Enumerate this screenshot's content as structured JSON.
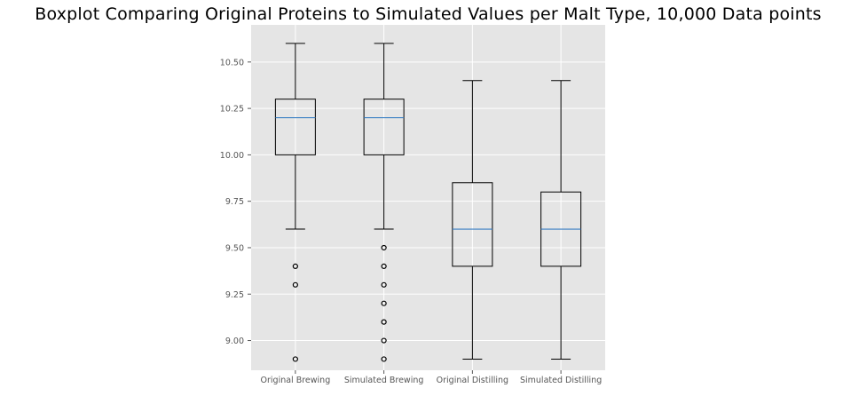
{
  "chart_data": {
    "type": "boxplot",
    "title": "Boxplot Comparing Original Proteins to Simulated Values per Malt Type, 10,000 Data points",
    "xlabel": "",
    "ylabel": "",
    "ylim": [
      8.84,
      10.7
    ],
    "yticks": [
      "9.00",
      "9.25",
      "9.50",
      "9.75",
      "10.00",
      "10.25",
      "10.50"
    ],
    "grid": true,
    "colors": {
      "background": "#e5e5e5",
      "grid": "#ffffff",
      "box": "#000000",
      "median": "#3a7fc4"
    },
    "categories": [
      "Original Brewing",
      "Simulated Brewing",
      "Original Distilling",
      "Simulated Distilling"
    ],
    "boxes": [
      {
        "whisker_low": 9.6,
        "q1": 10.0,
        "median": 10.2,
        "q3": 10.3,
        "whisker_high": 10.6,
        "outliers": [
          9.4,
          9.3,
          8.9
        ]
      },
      {
        "whisker_low": 9.6,
        "q1": 10.0,
        "median": 10.2,
        "q3": 10.3,
        "whisker_high": 10.6,
        "outliers": [
          9.5,
          9.4,
          9.3,
          9.2,
          9.1,
          9.0,
          8.9
        ]
      },
      {
        "whisker_low": 8.9,
        "q1": 9.4,
        "median": 9.6,
        "q3": 9.85,
        "whisker_high": 10.4,
        "outliers": []
      },
      {
        "whisker_low": 8.9,
        "q1": 9.4,
        "median": 9.6,
        "q3": 9.8,
        "whisker_high": 10.4,
        "outliers": []
      }
    ]
  }
}
